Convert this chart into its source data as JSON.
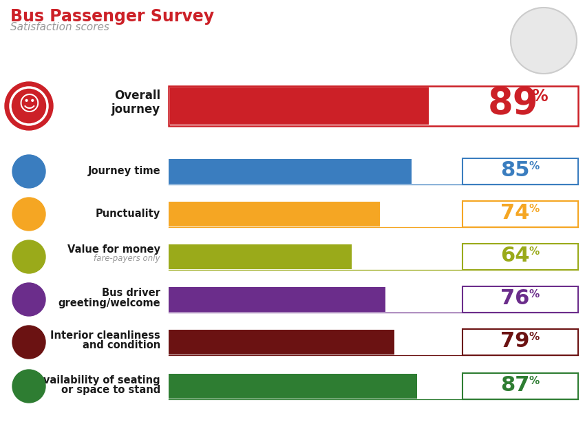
{
  "title": "Bus Passenger Survey",
  "subtitle": "Satisfaction scores",
  "title_color": "#cc2027",
  "subtitle_color": "#999999",
  "background_color": "#ffffff",
  "overall": {
    "label": "Overall\njourney",
    "value": 89,
    "bar_color": "#cc2027",
    "text_color": "#cc2027",
    "border_color": "#cc2027"
  },
  "categories": [
    {
      "label": "Journey time",
      "sublabel": null,
      "value": 85,
      "bar_color": "#3a7dbf",
      "text_color": "#3a7dbf",
      "border_color": "#3a7dbf"
    },
    {
      "label": "Punctuality",
      "sublabel": null,
      "value": 74,
      "bar_color": "#f5a623",
      "text_color": "#f5a623",
      "border_color": "#f5a623"
    },
    {
      "label": "Value for money",
      "sublabel": "fare-payers only",
      "value": 64,
      "bar_color": "#9aaa1a",
      "text_color": "#9aaa1a",
      "border_color": "#9aaa1a"
    },
    {
      "label": "Bus driver\ngreeting/welcome",
      "sublabel": null,
      "value": 76,
      "bar_color": "#6b2d8b",
      "text_color": "#6b2d8b",
      "border_color": "#6b2d8b"
    },
    {
      "label": "Interior cleanliness\nand condition",
      "sublabel": null,
      "value": 79,
      "bar_color": "#6b1212",
      "text_color": "#6b1212",
      "border_color": "#6b1212"
    },
    {
      "label": "Availability of seating\nor space to stand",
      "sublabel": null,
      "value": 87,
      "bar_color": "#2e7d32",
      "text_color": "#2e7d32",
      "border_color": "#2e7d32"
    }
  ],
  "icon_colors": [
    "#cc2027",
    "#3a7dbf",
    "#f5a623",
    "#9aaa1a",
    "#6b2d8b",
    "#6b1212",
    "#2e7d32"
  ]
}
